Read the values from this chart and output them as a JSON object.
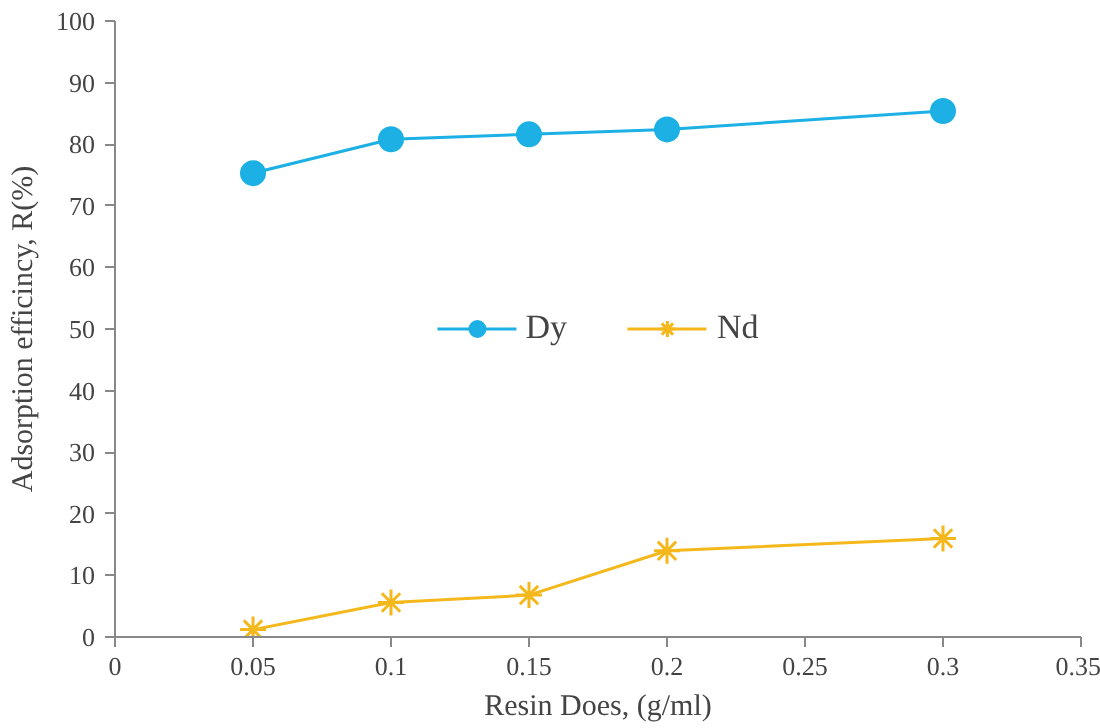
{
  "chart_data": {
    "type": "line",
    "xlabel": "Resin Does, (g/ml)",
    "ylabel": "Adsorption efficincy, R(%)",
    "x": [
      0.05,
      0.1,
      0.15,
      0.2,
      0.3
    ],
    "xlim": [
      0,
      0.35
    ],
    "xticks": [
      0,
      0.05,
      0.1,
      0.15,
      0.2,
      0.25,
      0.3,
      0.35
    ],
    "ylim": [
      0,
      100
    ],
    "yticks": [
      0,
      10,
      20,
      30,
      40,
      50,
      60,
      70,
      80,
      90,
      100
    ],
    "grid": false,
    "legend": "center",
    "line_style": "solid",
    "series": [
      {
        "name": "Dy",
        "color": "#1cb0e4",
        "marker": "circle",
        "values": [
          75.3,
          80.8,
          81.6,
          82.4,
          85.4
        ]
      },
      {
        "name": "Nd",
        "color": "#f5b81c",
        "marker": "cross",
        "values": [
          1.2,
          5.6,
          6.8,
          14.0,
          16.0
        ]
      }
    ]
  }
}
